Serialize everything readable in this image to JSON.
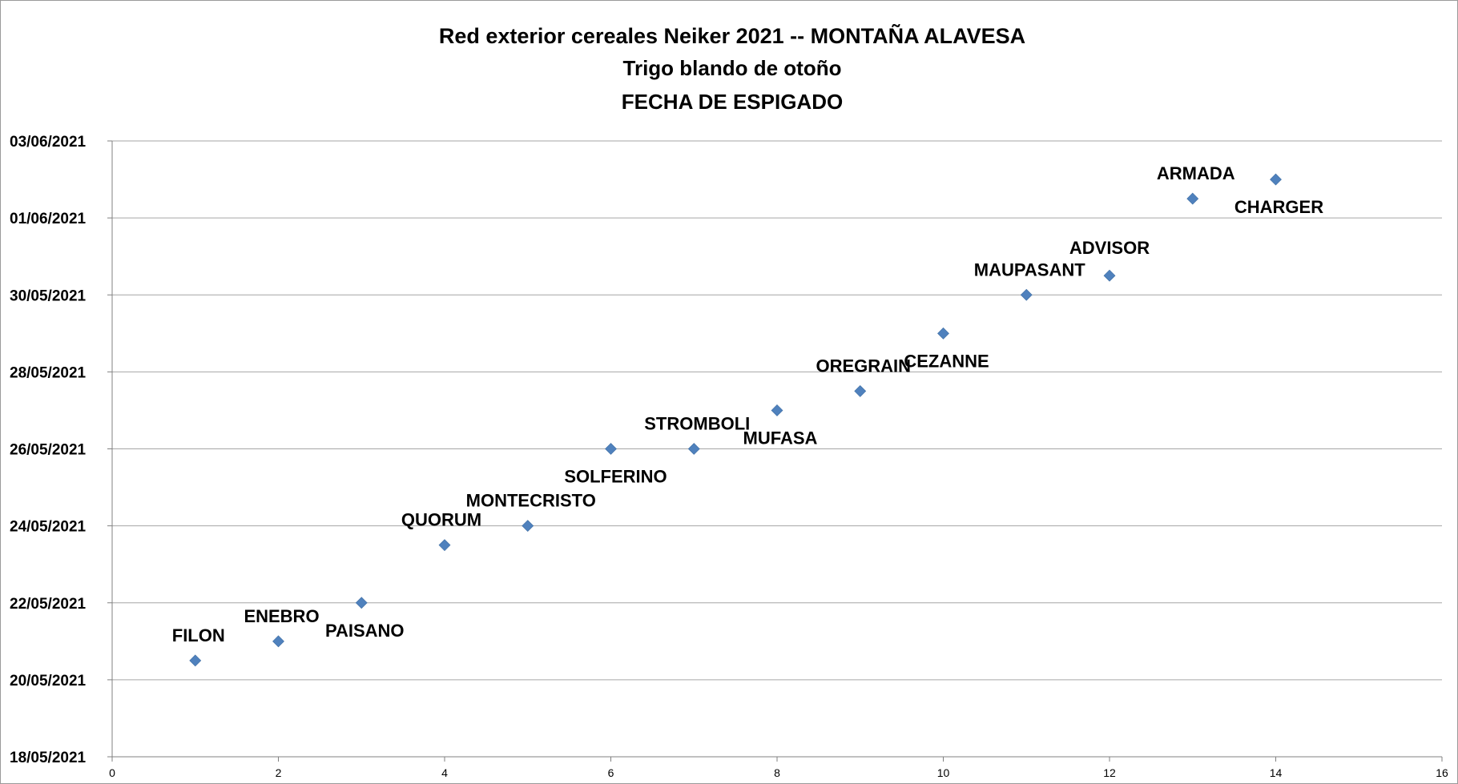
{
  "chart_data": {
    "type": "scatter",
    "title": "Red exterior cereales Neiker 2021  --    MONTAÑA ALAVESA",
    "subtitle": "Trigo blando de otoño",
    "subtitle2": "FECHA DE ESPIGADO",
    "xlabel": "",
    "ylabel": "",
    "xlim": [
      0,
      16
    ],
    "xticks": [
      0,
      2,
      4,
      6,
      8,
      10,
      12,
      14,
      16
    ],
    "ylim": [
      "2021-05-18",
      "2021-06-03"
    ],
    "yticks": [
      "18/05/2021",
      "20/05/2021",
      "22/05/2021",
      "24/05/2021",
      "26/05/2021",
      "28/05/2021",
      "30/05/2021",
      "01/06/2021",
      "03/06/2021"
    ],
    "grid": "horizontal",
    "marker_color": "#4f81bd",
    "gridline_color": "#a6a6a6",
    "points": [
      {
        "label": "FILON",
        "x": 1,
        "y": "2021-05-20 12:00"
      },
      {
        "label": "ENEBRO",
        "x": 2,
        "y": "2021-05-21"
      },
      {
        "label": "PAISANO",
        "x": 3,
        "y": "2021-05-22"
      },
      {
        "label": "QUORUM",
        "x": 4,
        "y": "2021-05-23 12:00"
      },
      {
        "label": "MONTECRISTO",
        "x": 5,
        "y": "2021-05-24"
      },
      {
        "label": "SOLFERINO",
        "x": 6,
        "y": "2021-05-26"
      },
      {
        "label": "STROMBOLI",
        "x": 7,
        "y": "2021-05-26"
      },
      {
        "label": "MUFASA",
        "x": 8,
        "y": "2021-05-27"
      },
      {
        "label": "OREGRAIN",
        "x": 9,
        "y": "2021-05-27 12:00"
      },
      {
        "label": "CEZANNE",
        "x": 10,
        "y": "2021-05-29"
      },
      {
        "label": "MAUPASANT",
        "x": 11,
        "y": "2021-05-30"
      },
      {
        "label": "ADVISOR",
        "x": 12,
        "y": "2021-05-30 12:00"
      },
      {
        "label": "ARMADA",
        "x": 13,
        "y": "2021-06-01 12:00"
      },
      {
        "label": "CHARGER",
        "x": 14,
        "y": "2021-06-02"
      }
    ]
  }
}
